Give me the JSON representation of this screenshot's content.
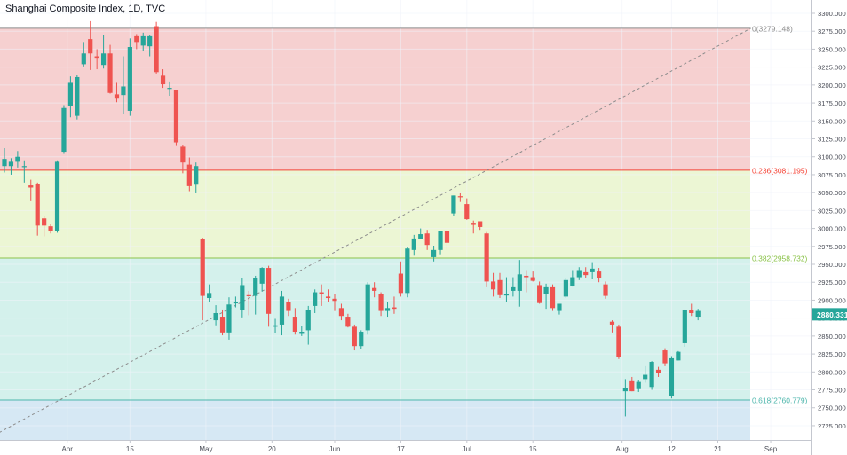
{
  "chart_title": "Shanghai Composite Index, 1D, TVC",
  "colors": {
    "up": "#26a69a",
    "down": "#ef5350",
    "zone_red": "#f6d0d0",
    "zone_yellow": "#ecf6d4",
    "zone_green": "#d4f1ec",
    "zone_blue": "#d6e8f4",
    "line_0": "#8c8c8c",
    "line_236": "#f44336",
    "line_382": "#8bc34a",
    "line_618": "#4db6ac",
    "trend": "#8c8c8c",
    "last_price_bg": "#26a69a"
  },
  "chart_data": {
    "type": "candlestick",
    "title": "Shanghai Composite Index, 1D, TVC",
    "ylim": [
      2700,
      3312.5
    ],
    "y_ticks": [
      2725,
      2750,
      2775,
      2800,
      2825,
      2850,
      2875,
      2900,
      2925,
      2950,
      2975,
      3000,
      3025,
      3050,
      3075,
      3100,
      3125,
      3150,
      3175,
      3200,
      3225,
      3250,
      3275,
      3300
    ],
    "y_tick_labels": [
      "2725.000",
      "2750.000",
      "2775.000",
      "2800.000",
      "2825.000",
      "2850.000",
      "2875.000",
      "2900.000",
      "2925.000",
      "2950.000",
      "2975.000",
      "3000.000",
      "3025.000",
      "3050.000",
      "3075.000",
      "3100.000",
      "3125.000",
      "3150.000",
      "3175.000",
      "3200.000",
      "3225.000",
      "3250.000",
      "3275.000",
      "3300.000"
    ],
    "x_ticks": [
      {
        "label": "Apr",
        "index": 9.5
      },
      {
        "label": "15",
        "index": 19
      },
      {
        "label": "May",
        "index": 30.5
      },
      {
        "label": "20",
        "index": 40.5
      },
      {
        "label": "Jun",
        "index": 50
      },
      {
        "label": "17",
        "index": 60
      },
      {
        "label": "Jul",
        "index": 70
      },
      {
        "label": "15",
        "index": 80
      },
      {
        "label": "Aug",
        "index": 93.5
      },
      {
        "label": "12",
        "index": 101
      },
      {
        "label": "21",
        "index": 108
      },
      {
        "label": "Sep",
        "index": 116
      }
    ],
    "candles": [
      {
        "o": 3087,
        "h": 3112,
        "l": 3078,
        "c": 3097
      },
      {
        "o": 3087,
        "h": 3098,
        "l": 3075,
        "c": 3093
      },
      {
        "o": 3093,
        "h": 3108,
        "l": 3085,
        "c": 3100
      },
      {
        "o": 3087,
        "h": 3095,
        "l": 3064,
        "c": 3087
      },
      {
        "o": 3060,
        "h": 3068,
        "l": 3038,
        "c": 3057
      },
      {
        "o": 3062,
        "h": 3064,
        "l": 2990,
        "c": 3004
      },
      {
        "o": 3014,
        "h": 3018,
        "l": 2989,
        "c": 3004
      },
      {
        "o": 3003,
        "h": 3006,
        "l": 2993,
        "c": 2996
      },
      {
        "o": 2996,
        "h": 3095,
        "l": 2994,
        "c": 3093
      },
      {
        "o": 3107,
        "h": 3172,
        "l": 3104,
        "c": 3168
      },
      {
        "o": 3171,
        "h": 3212,
        "l": 3155,
        "c": 3203
      },
      {
        "o": 3157,
        "h": 3214,
        "l": 3152,
        "c": 3211
      },
      {
        "o": 3229,
        "h": 3260,
        "l": 3226,
        "c": 3244
      },
      {
        "o": 3264,
        "h": 3289,
        "l": 3221,
        "c": 3244
      },
      {
        "o": 3240,
        "h": 3250,
        "l": 3222,
        "c": 3238
      },
      {
        "o": 3228,
        "h": 3270,
        "l": 3223,
        "c": 3244
      },
      {
        "o": 3244,
        "h": 3256,
        "l": 3188,
        "c": 3189
      },
      {
        "o": 3187,
        "h": 3203,
        "l": 3176,
        "c": 3181
      },
      {
        "o": 3186,
        "h": 3240,
        "l": 3160,
        "c": 3198
      },
      {
        "o": 3164,
        "h": 3265,
        "l": 3157,
        "c": 3253
      },
      {
        "o": 3268,
        "h": 3271,
        "l": 3250,
        "c": 3260
      },
      {
        "o": 3255,
        "h": 3273,
        "l": 3248,
        "c": 3268
      },
      {
        "o": 3254,
        "h": 3270,
        "l": 3240,
        "c": 3268
      },
      {
        "o": 3282,
        "h": 3288,
        "l": 3216,
        "c": 3218
      },
      {
        "o": 3213,
        "h": 3222,
        "l": 3196,
        "c": 3201
      },
      {
        "o": 3196,
        "h": 3205,
        "l": 3185,
        "c": 3196
      },
      {
        "o": 3193,
        "h": 3193,
        "l": 3115,
        "c": 3120
      },
      {
        "o": 3114,
        "h": 3116,
        "l": 3077,
        "c": 3092
      },
      {
        "o": 3089,
        "h": 3099,
        "l": 3052,
        "c": 3059
      },
      {
        "o": 3061,
        "h": 3092,
        "l": 3049,
        "c": 3087
      },
      {
        "o": 2985,
        "h": 2987,
        "l": 2872,
        "c": 2906
      },
      {
        "o": 2903,
        "h": 2922,
        "l": 2898,
        "c": 2910
      },
      {
        "o": 2872,
        "h": 2893,
        "l": 2865,
        "c": 2882
      },
      {
        "o": 2877,
        "h": 2887,
        "l": 2851,
        "c": 2855
      },
      {
        "o": 2855,
        "h": 2904,
        "l": 2845,
        "c": 2894
      },
      {
        "o": 2896,
        "h": 2905,
        "l": 2890,
        "c": 2897
      },
      {
        "o": 2886,
        "h": 2931,
        "l": 2876,
        "c": 2921
      },
      {
        "o": 2907,
        "h": 2913,
        "l": 2879,
        "c": 2906
      },
      {
        "o": 2906,
        "h": 2934,
        "l": 2880,
        "c": 2931
      },
      {
        "o": 2923,
        "h": 2946,
        "l": 2912,
        "c": 2945
      },
      {
        "o": 2945,
        "h": 2948,
        "l": 2863,
        "c": 2881
      },
      {
        "o": 2863,
        "h": 2874,
        "l": 2854,
        "c": 2865
      },
      {
        "o": 2866,
        "h": 2913,
        "l": 2851,
        "c": 2905
      },
      {
        "o": 2898,
        "h": 2902,
        "l": 2878,
        "c": 2885
      },
      {
        "o": 2877,
        "h": 2889,
        "l": 2852,
        "c": 2856
      },
      {
        "o": 2853,
        "h": 2864,
        "l": 2850,
        "c": 2856
      },
      {
        "o": 2858,
        "h": 2892,
        "l": 2838,
        "c": 2886
      },
      {
        "o": 2892,
        "h": 2915,
        "l": 2882,
        "c": 2911
      },
      {
        "o": 2911,
        "h": 2922,
        "l": 2892,
        "c": 2908
      },
      {
        "o": 2905,
        "h": 2915,
        "l": 2898,
        "c": 2903
      },
      {
        "o": 2902,
        "h": 2908,
        "l": 2885,
        "c": 2899
      },
      {
        "o": 2889,
        "h": 2895,
        "l": 2872,
        "c": 2878
      },
      {
        "o": 2877,
        "h": 2881,
        "l": 2862,
        "c": 2863
      },
      {
        "o": 2863,
        "h": 2866,
        "l": 2830,
        "c": 2836
      },
      {
        "o": 2836,
        "h": 2858,
        "l": 2832,
        "c": 2856
      },
      {
        "o": 2858,
        "h": 2925,
        "l": 2852,
        "c": 2922
      },
      {
        "o": 2917,
        "h": 2925,
        "l": 2904,
        "c": 2913
      },
      {
        "o": 2908,
        "h": 2911,
        "l": 2878,
        "c": 2885
      },
      {
        "o": 2885,
        "h": 2897,
        "l": 2877,
        "c": 2889
      },
      {
        "o": 2890,
        "h": 2905,
        "l": 2881,
        "c": 2888
      },
      {
        "o": 2937,
        "h": 2954,
        "l": 2905,
        "c": 2910
      },
      {
        "o": 2910,
        "h": 2974,
        "l": 2904,
        "c": 2972
      },
      {
        "o": 2970,
        "h": 2991,
        "l": 2962,
        "c": 2986
      },
      {
        "o": 2985,
        "h": 3000,
        "l": 2985,
        "c": 2992
      },
      {
        "o": 2993,
        "h": 2998,
        "l": 2970,
        "c": 2977
      },
      {
        "o": 2960,
        "h": 2976,
        "l": 2954,
        "c": 2970
      },
      {
        "o": 2970,
        "h": 2994,
        "l": 2964,
        "c": 2996
      },
      {
        "o": 2996,
        "h": 2998,
        "l": 2970,
        "c": 2980
      },
      {
        "o": 3021,
        "h": 3046,
        "l": 3017,
        "c": 3046
      },
      {
        "o": 3045,
        "h": 3049,
        "l": 3037,
        "c": 3044
      },
      {
        "o": 3034,
        "h": 3042,
        "l": 3012,
        "c": 3013
      },
      {
        "o": 3008,
        "h": 3011,
        "l": 2993,
        "c": 3005
      },
      {
        "o": 3010,
        "h": 3010,
        "l": 2998,
        "c": 3002
      },
      {
        "o": 2993,
        "h": 2995,
        "l": 2918,
        "c": 2926
      },
      {
        "o": 2926,
        "h": 2938,
        "l": 2905,
        "c": 2915
      },
      {
        "o": 2928,
        "h": 2938,
        "l": 2903,
        "c": 2907
      },
      {
        "o": 2907,
        "h": 2932,
        "l": 2898,
        "c": 2908
      },
      {
        "o": 2913,
        "h": 2932,
        "l": 2905,
        "c": 2918
      },
      {
        "o": 2913,
        "h": 2956,
        "l": 2891,
        "c": 2936
      },
      {
        "o": 2934,
        "h": 2942,
        "l": 2911,
        "c": 2932
      },
      {
        "o": 2932,
        "h": 2940,
        "l": 2926,
        "c": 2927
      },
      {
        "o": 2921,
        "h": 2926,
        "l": 2895,
        "c": 2896
      },
      {
        "o": 2909,
        "h": 2923,
        "l": 2888,
        "c": 2918
      },
      {
        "o": 2918,
        "h": 2922,
        "l": 2885,
        "c": 2889
      },
      {
        "o": 2885,
        "h": 2890,
        "l": 2880,
        "c": 2895
      },
      {
        "o": 2905,
        "h": 2931,
        "l": 2903,
        "c": 2928
      },
      {
        "o": 2920,
        "h": 2942,
        "l": 2919,
        "c": 2932
      },
      {
        "o": 2932,
        "h": 2946,
        "l": 2928,
        "c": 2942
      },
      {
        "o": 2939,
        "h": 2946,
        "l": 2931,
        "c": 2935
      },
      {
        "o": 2939,
        "h": 2953,
        "l": 2929,
        "c": 2944
      },
      {
        "o": 2940,
        "h": 2945,
        "l": 2925,
        "c": 2931
      },
      {
        "o": 2922,
        "h": 2926,
        "l": 2902,
        "c": 2906
      },
      {
        "o": 2870,
        "h": 2872,
        "l": 2855,
        "c": 2866
      },
      {
        "o": 2863,
        "h": 2866,
        "l": 2818,
        "c": 2821
      },
      {
        "o": 2773,
        "h": 2790,
        "l": 2738,
        "c": 2778
      },
      {
        "o": 2787,
        "h": 2793,
        "l": 2773,
        "c": 2773
      },
      {
        "o": 2776,
        "h": 2789,
        "l": 2772,
        "c": 2786
      },
      {
        "o": 2790,
        "h": 2808,
        "l": 2785,
        "c": 2796
      },
      {
        "o": 2779,
        "h": 2815,
        "l": 2775,
        "c": 2814
      },
      {
        "o": 2803,
        "h": 2807,
        "l": 2793,
        "c": 2798
      },
      {
        "o": 2830,
        "h": 2833,
        "l": 2808,
        "c": 2812
      },
      {
        "o": 2766,
        "h": 2822,
        "l": 2763,
        "c": 2819
      },
      {
        "o": 2816,
        "h": 2829,
        "l": 2816,
        "c": 2828
      },
      {
        "o": 2840,
        "h": 2887,
        "l": 2835,
        "c": 2886
      },
      {
        "o": 2886,
        "h": 2895,
        "l": 2878,
        "c": 2882
      },
      {
        "o": 2877,
        "h": 2888,
        "l": 2872,
        "c": 2885
      }
    ],
    "fib_levels": [
      {
        "label": "0(3279.148)",
        "value": 3279.148
      },
      {
        "label": "0.236(3081.195)",
        "value": 3081.195
      },
      {
        "label": "0.382(2958.732)",
        "value": 2958.732
      },
      {
        "label": "0.618(2760.779)",
        "value": 2760.779
      }
    ],
    "trendline": {
      "x1": -1.5,
      "y1": 2712,
      "x2": 113,
      "y2": 3279.148
    },
    "last_price": {
      "label": "2880.331",
      "value": 2880.331
    }
  }
}
